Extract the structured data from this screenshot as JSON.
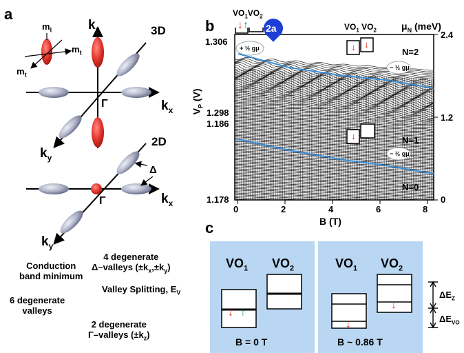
{
  "panel_a": {
    "label": "a",
    "top": {
      "label_3d": "3D",
      "axes": {
        "kz": "k",
        "kz_sub": "z",
        "kx": "k",
        "kx_sub": "x",
        "ky": "k",
        "ky_sub": "y"
      },
      "gamma": "Γ",
      "ml": "m",
      "ml_sub": "l",
      "mt1": "m",
      "mt1_sub": "t",
      "mt2": "m",
      "mt2_sub": "t"
    },
    "middle": {
      "label_2d": "2D",
      "delta": "Δ",
      "gamma": "Γ",
      "axes": {
        "kx": "k",
        "kx_sub": "x",
        "ky": "k",
        "ky_sub": "y"
      }
    },
    "diagram": {
      "cbm_line1": "Conduction",
      "cbm_line2": "band minimum",
      "six_line1": "6 degenerate",
      "six_line2": "valleys",
      "four_line1": "4 degenerate",
      "four_line2": "Δ–valleys (±k",
      "four_line2_sub1": "x",
      "four_line2_mid": ",±k",
      "four_line2_sub2": "y",
      "four_line2_end": ")",
      "valley_split": "Valley Splitting, E",
      "valley_split_sub": "V",
      "two_line1": "2 degenerate",
      "two_line2": "Γ–valleys (±k",
      "two_line2_sub": "z",
      "two_line2_end": ")"
    }
  },
  "panel_b": {
    "label": "b",
    "xlabel": "B (T)",
    "ylabel": "V",
    "ylabel_sub": "P",
    "ylabel_unit": " (V)",
    "y_ticks_top": [
      "1.306",
      "1.298"
    ],
    "y_ticks_bottom": [
      "1.186",
      "1.178"
    ],
    "x_ticks": [
      "0",
      "2",
      "4",
      "6",
      "8"
    ],
    "right_label": "μ",
    "right_label_sub": "N",
    "right_label_unit": " (meV)",
    "right_ticks": [
      "2.4",
      "1.2",
      "0"
    ],
    "n_labels": [
      "N=2",
      "N=1",
      "N=0"
    ],
    "marker": "2a",
    "vo1": "VO",
    "vo1_sub": "1",
    "vo2": "VO",
    "vo2_sub": "2",
    "half_g_mu": "−",
    "colors": {
      "blue_line": "#3a8fd8",
      "marker": "#1e3fd6",
      "red": "#e8322a",
      "green": "#1f9a4a"
    }
  },
  "panel_c": {
    "label": "c",
    "left": {
      "vo1": "VO",
      "vo1_sub": "1",
      "vo2": "VO",
      "vo2_sub": "2",
      "caption": "B = 0 T"
    },
    "right": {
      "vo1": "VO",
      "vo1_sub": "1",
      "vo2": "VO",
      "vo2_sub": "2",
      "caption": "B ~ 0.86 T"
    },
    "dez": "ΔE",
    "dez_sub": "Z",
    "devo": "ΔE",
    "devo_sub": "VO",
    "colors": {
      "bg": "#b9d7f2",
      "red": "#e8322a",
      "green": "#1f9a4a"
    }
  }
}
